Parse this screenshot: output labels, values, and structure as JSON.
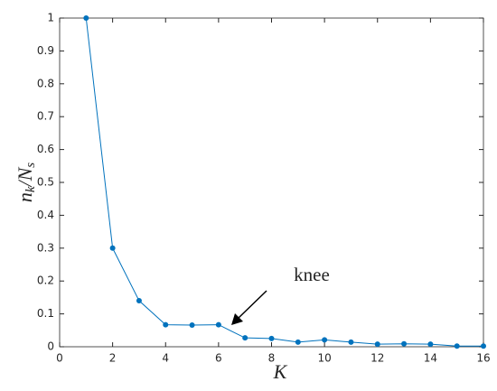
{
  "chart_data": {
    "type": "line",
    "x_label": "K",
    "y_label": [
      "n",
      "k",
      "/N",
      "s"
    ],
    "x": [
      1,
      2,
      3,
      4,
      5,
      6,
      7,
      8,
      9,
      10,
      11,
      12,
      13,
      14,
      15,
      16
    ],
    "series": [
      {
        "color": "#0072bd",
        "values": [
          1,
          0.3,
          0.14,
          0.067,
          0.066,
          0.067,
          0.027,
          0.025,
          0.014,
          0.021,
          0.014,
          0.008,
          0.009,
          0.008,
          0.002,
          0.002
        ]
      }
    ],
    "xlim": [
      0,
      16
    ],
    "xticks": [
      0,
      2,
      4,
      6,
      8,
      10,
      12,
      14,
      16
    ],
    "ylim": [
      0,
      1
    ],
    "yticks": [
      0,
      0.1,
      0.2,
      0.3,
      0.4,
      0.5,
      0.6,
      0.7,
      0.8,
      0.9,
      1
    ],
    "annotation": "knee"
  }
}
